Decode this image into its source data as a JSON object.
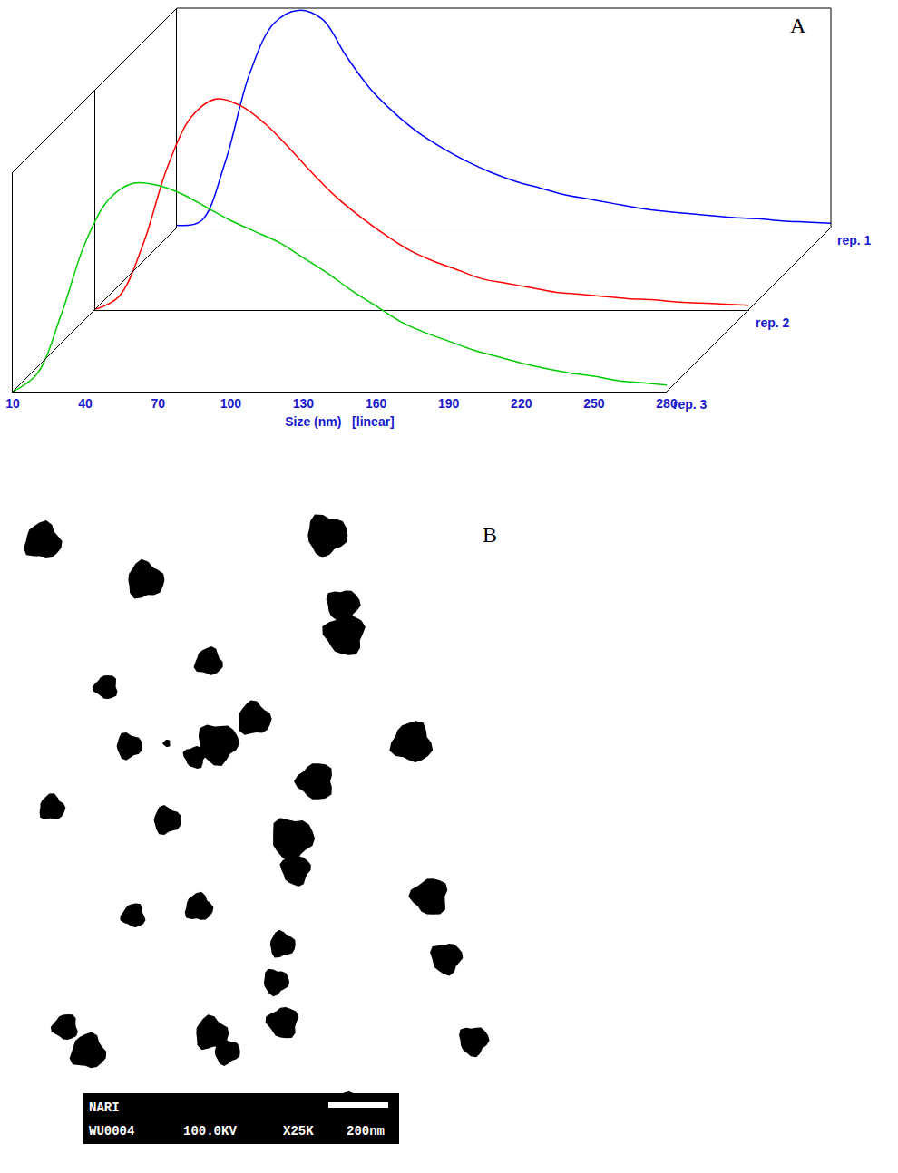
{
  "chart_data": {
    "type": "line",
    "panel_label": "A",
    "x_title": "Size (nm)   [linear]",
    "x": [
      10,
      20,
      30,
      40,
      50,
      60,
      70,
      80,
      90,
      100,
      110,
      120,
      130,
      140,
      150,
      160,
      170,
      180,
      190,
      200,
      210,
      220,
      230,
      240,
      250,
      260,
      270,
      280
    ],
    "series": [
      {
        "name": "rep. 1",
        "color": "#0000ff",
        "values": [
          1,
          3,
          30,
          70,
          93,
          99,
          95,
          78,
          63,
          52,
          43,
          36,
          30,
          25,
          21,
          18,
          15,
          13,
          11,
          9,
          7.5,
          6.5,
          5.5,
          4.5,
          4,
          3,
          2.5,
          2
        ]
      },
      {
        "name": "rep. 2",
        "color": "#ff0000",
        "values": [
          0,
          6,
          30,
          65,
          88,
          96,
          93,
          85,
          74,
          62,
          51,
          42,
          34,
          27,
          22,
          18,
          14,
          12,
          10,
          8,
          7,
          6,
          5,
          4.5,
          3.5,
          3,
          2.5,
          2
        ]
      },
      {
        "name": "rep. 3",
        "color": "#00cc00",
        "values": [
          0,
          8,
          35,
          68,
          88,
          95,
          94,
          90,
          84,
          78,
          73,
          68,
          61,
          54,
          46,
          39,
          32,
          27,
          23,
          19,
          16,
          13,
          10.5,
          8.5,
          7,
          5,
          4,
          3
        ]
      }
    ],
    "xlim": [
      10,
      280
    ],
    "xticks": [
      10,
      40,
      70,
      100,
      130,
      160,
      190,
      220,
      250,
      280
    ],
    "ylim": [
      0,
      100
    ],
    "tick_labels": "x",
    "grid": false,
    "line_style": "smooth"
  },
  "micrograph": {
    "panel_label": "B",
    "info_bar": {
      "operator": "NARI",
      "image_id": "WU0004",
      "voltage": "100.0KV",
      "magnification": "X25K",
      "scale_bar": "200nm"
    }
  }
}
